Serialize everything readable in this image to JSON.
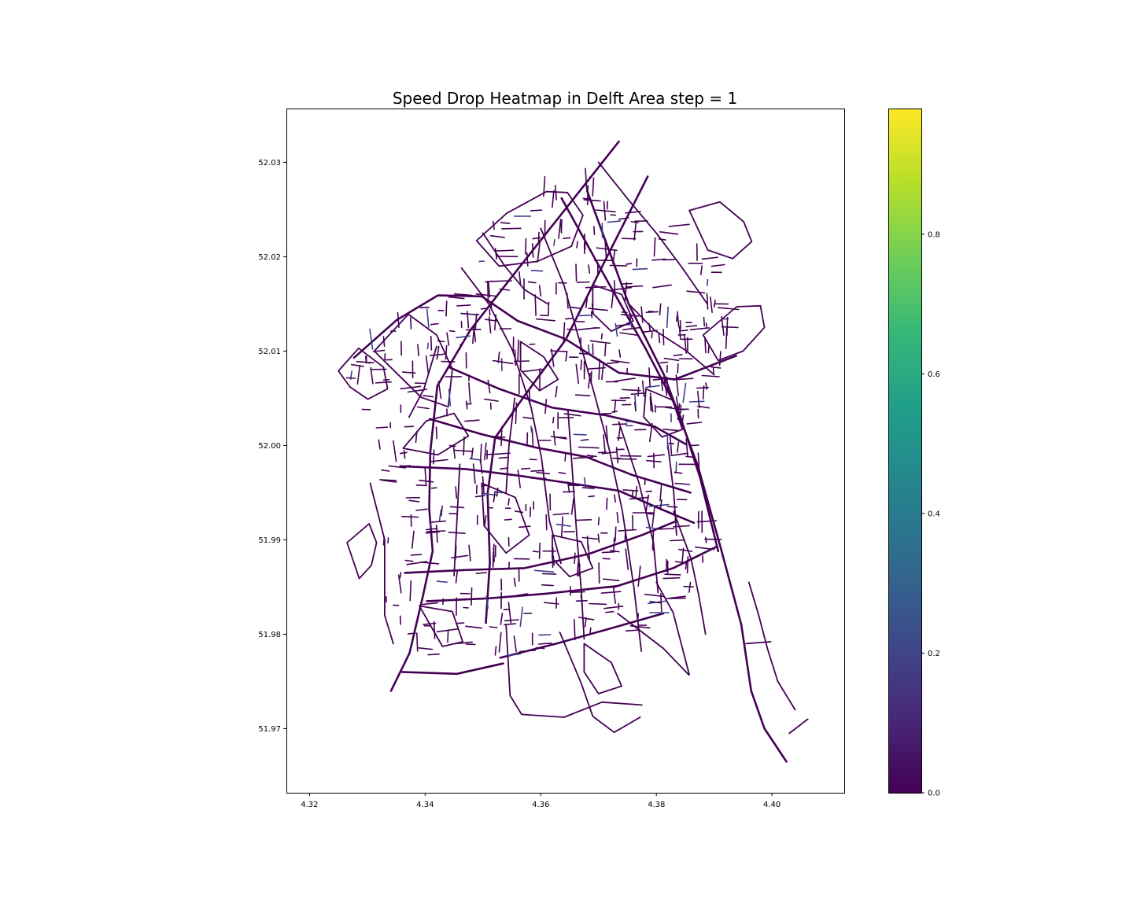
{
  "chart_data": {
    "type": "heatmap",
    "title": "Speed Drop Heatmap in Delft Area step = 1",
    "xlabel": "",
    "ylabel": "",
    "xlim": [
      4.316,
      4.4125
    ],
    "ylim": [
      51.9632,
      52.0357
    ],
    "x_ticks": [
      4.32,
      4.34,
      4.36,
      4.38,
      4.4
    ],
    "x_tick_labels": [
      "4.32",
      "4.34",
      "4.36",
      "4.38",
      "4.40"
    ],
    "y_ticks": [
      51.97,
      51.98,
      51.99,
      52.0,
      52.01,
      52.02,
      52.03
    ],
    "y_tick_labels": [
      "51.97",
      "51.98",
      "51.99",
      "52.00",
      "52.01",
      "52.02",
      "52.03"
    ],
    "grid": false,
    "colorbar": {
      "colormap": "viridis",
      "range": [
        0,
        0.98
      ],
      "ticks": [
        0,
        0.2,
        0.4,
        0.6,
        0.8
      ],
      "tick_labels": [
        "0.0",
        "0.2",
        "0.4",
        "0.6",
        "0.8"
      ],
      "colors": [
        "#440154",
        "#482878",
        "#3e4989",
        "#31688e",
        "#26828e",
        "#1f9e89",
        "#35b779",
        "#6ece58",
        "#b5de2b",
        "#fde725"
      ]
    },
    "edge_color": "#440154",
    "accent_edge_color": "#3b3f8c",
    "roads": [
      [
        [
          4.3735,
          52.0322
        ],
        [
          4.3553,
          52.0181
        ],
        [
          4.3478,
          52.0122
        ],
        [
          4.3421,
          52.0063
        ],
        [
          4.3409,
          51.9993
        ],
        [
          4.3407,
          51.9933
        ],
        [
          4.3413,
          51.9888
        ],
        [
          4.3396,
          51.984
        ],
        [
          4.3373,
          51.978
        ],
        [
          4.3341,
          51.974
        ]
      ],
      [
        [
          4.3785,
          52.0285
        ],
        [
          4.3713,
          52.0198
        ],
        [
          4.3643,
          52.0112
        ],
        [
          4.357,
          52.0051
        ],
        [
          4.3521,
          52.0008
        ],
        [
          4.3508,
          51.9949
        ],
        [
          4.3512,
          51.9876
        ],
        [
          4.3505,
          51.9812
        ]
      ],
      [
        [
          4.368,
          52.027
        ],
        [
          4.3752,
          52.015
        ],
        [
          4.3813,
          52.0075
        ],
        [
          4.3872,
          51.9978
        ],
        [
          4.3912,
          51.989
        ],
        [
          4.3947,
          51.981
        ],
        [
          4.3964,
          51.974
        ],
        [
          4.3987,
          51.97
        ],
        [
          4.4025,
          51.9665
        ]
      ],
      [
        [
          4.3636,
          52.0262
        ],
        [
          4.371,
          52.018
        ],
        [
          4.3781,
          52.0103
        ],
        [
          4.3839,
          52.0035
        ],
        [
          4.3876,
          51.9965
        ],
        [
          4.3907,
          51.9888
        ]
      ],
      [
        [
          4.3277,
          52.0093
        ],
        [
          4.3351,
          52.0133
        ],
        [
          4.3422,
          52.0159
        ],
        [
          4.3498,
          52.0158
        ],
        [
          4.356,
          52.0132
        ],
        [
          4.3642,
          52.0113
        ],
        [
          4.3735,
          52.0077
        ],
        [
          4.3832,
          52.007
        ],
        [
          4.3938,
          52.0095
        ]
      ],
      [
        [
          4.3357,
          51.9978
        ],
        [
          4.347,
          51.9975
        ],
        [
          4.3562,
          51.9968
        ],
        [
          4.365,
          51.996
        ],
        [
          4.3735,
          51.9952
        ],
        [
          4.381,
          51.9932
        ],
        [
          4.3865,
          51.9918
        ]
      ],
      [
        [
          4.3365,
          51.9865
        ],
        [
          4.3468,
          51.9868
        ],
        [
          4.3572,
          51.987
        ],
        [
          4.3683,
          51.9885
        ],
        [
          4.3775,
          51.9905
        ],
        [
          4.3835,
          51.992
        ]
      ],
      [
        [
          4.3403,
          51.9835
        ],
        [
          4.351,
          51.9838
        ],
        [
          4.361,
          51.9843
        ],
        [
          4.3732,
          51.9851
        ],
        [
          4.3829,
          51.987
        ],
        [
          4.3905,
          51.9893
        ]
      ],
      [
        [
          4.353,
          51.9775
        ],
        [
          4.3627,
          51.979
        ],
        [
          4.372,
          51.9806
        ],
        [
          4.3812,
          51.9822
        ]
      ],
      [
        [
          4.336,
          51.976
        ],
        [
          4.3455,
          51.9758
        ],
        [
          4.3535,
          51.9769
        ]
      ],
      [
        [
          4.3441,
          52.0083
        ],
        [
          4.3528,
          52.006
        ],
        [
          4.362,
          52.004
        ],
        [
          4.3712,
          52.0032
        ],
        [
          4.3797,
          52.002
        ],
        [
          4.3852,
          52.0001
        ]
      ],
      [
        [
          4.3408,
          52.0028
        ],
        [
          4.3497,
          52.0012
        ],
        [
          4.359,
          51.9998
        ],
        [
          4.3678,
          51.9988
        ],
        [
          4.3757,
          51.9969
        ],
        [
          4.3859,
          51.995
        ]
      ],
      [
        [
          4.3463,
          52.0188
        ],
        [
          4.351,
          52.015
        ],
        [
          4.3551,
          52.0101
        ],
        [
          4.3583,
          52.0041
        ],
        [
          4.3601,
          51.9988
        ],
        [
          4.3615,
          51.992
        ],
        [
          4.3635,
          51.9875
        ]
      ],
      [
        [
          4.36,
          52.023
        ],
        [
          4.364,
          52.017
        ],
        [
          4.3668,
          52.0109
        ],
        [
          4.3693,
          52.0054
        ],
        [
          4.3718,
          51.9997
        ],
        [
          4.3741,
          51.9931
        ],
        [
          4.3761,
          51.985
        ],
        [
          4.3774,
          51.9782
        ]
      ],
      [
        [
          4.3647,
          52.0038
        ],
        [
          4.3655,
          51.997
        ],
        [
          4.3662,
          51.9908
        ],
        [
          4.367,
          51.9847
        ],
        [
          4.3675,
          51.9795
        ]
      ],
      [
        [
          4.3735,
          52.0025
        ],
        [
          4.377,
          51.996
        ],
        [
          4.3795,
          51.9897
        ],
        [
          4.3803,
          51.9844
        ]
      ],
      [
        [
          4.354,
          51.981
        ],
        [
          4.3547,
          51.9735
        ],
        [
          4.3567,
          51.9715
        ],
        [
          4.364,
          51.9712
        ],
        [
          4.3706,
          51.9728
        ],
        [
          4.3775,
          51.9725
        ]
      ],
      [
        [
          4.3633,
          51.9802
        ],
        [
          4.367,
          51.9748
        ],
        [
          4.369,
          51.9713
        ],
        [
          4.3727,
          51.9696
        ],
        [
          4.3772,
          51.9712
        ]
      ],
      [
        [
          4.3733,
          51.9822
        ],
        [
          4.3812,
          51.9785
        ],
        [
          4.3856,
          51.9757
        ]
      ],
      [
        [
          4.3857,
          51.9757
        ],
        [
          4.3829,
          51.9823
        ],
        [
          4.38,
          51.9855
        ]
      ],
      [
        [
          4.3265,
          51.9897
        ],
        [
          4.3303,
          51.9917
        ],
        [
          4.3316,
          51.9897
        ],
        [
          4.3307,
          51.9873
        ],
        [
          4.3286,
          51.9859
        ],
        [
          4.3265,
          51.9897
        ]
      ],
      [
        [
          4.325,
          52.0079
        ],
        [
          4.327,
          52.0062
        ],
        [
          4.3301,
          52.0049
        ],
        [
          4.3335,
          52.006
        ],
        [
          4.3328,
          52.0083
        ],
        [
          4.3285,
          52.0103
        ],
        [
          4.325,
          52.0079
        ]
      ],
      [
        [
          4.3312,
          52.01
        ],
        [
          4.3371,
          52.0139
        ],
        [
          4.342,
          52.0117
        ],
        [
          4.3447,
          52.0081
        ],
        [
          4.344,
          52.0041
        ],
        [
          4.3393,
          52.0051
        ],
        [
          4.3312,
          52.01
        ]
      ],
      [
        [
          4.3489,
          52.0217
        ],
        [
          4.3541,
          52.0246
        ],
        [
          4.361,
          52.0269
        ],
        [
          4.3646,
          52.0268
        ],
        [
          4.3673,
          52.0244
        ],
        [
          4.3653,
          52.0211
        ],
        [
          4.3594,
          52.0195
        ],
        [
          4.3528,
          52.019
        ],
        [
          4.3489,
          52.0217
        ]
      ],
      [
        [
          4.3857,
          52.0249
        ],
        [
          4.391,
          52.0258
        ],
        [
          4.3951,
          52.0237
        ],
        [
          4.3965,
          52.0216
        ],
        [
          4.3932,
          52.0198
        ],
        [
          4.3889,
          52.0207
        ],
        [
          4.3857,
          52.0249
        ]
      ],
      [
        [
          4.3881,
          52.0117
        ],
        [
          4.3939,
          52.0147
        ],
        [
          4.398,
          52.0148
        ],
        [
          4.3987,
          52.0125
        ],
        [
          4.395,
          52.01
        ],
        [
          4.3907,
          52.009
        ],
        [
          4.3881,
          52.0117
        ]
      ],
      [
        [
          4.3362,
          51.9997
        ],
        [
          4.3402,
          52.0026
        ],
        [
          4.345,
          52.0034
        ],
        [
          4.3475,
          52.001
        ],
        [
          4.3422,
          51.999
        ],
        [
          4.3362,
          51.9997
        ]
      ],
      [
        [
          4.339,
          51.983
        ],
        [
          4.3447,
          51.9824
        ],
        [
          4.3465,
          51.9792
        ],
        [
          4.343,
          51.9787
        ],
        [
          4.339,
          51.983
        ]
      ],
      [
        [
          4.3498,
          51.996
        ],
        [
          4.3556,
          51.9945
        ],
        [
          4.358,
          51.9905
        ],
        [
          4.354,
          51.9886
        ],
        [
          4.3502,
          51.9915
        ],
        [
          4.3498,
          51.996
        ]
      ],
      [
        [
          4.3565,
          52.011
        ],
        [
          4.3605,
          52.0094
        ],
        [
          4.363,
          52.007
        ],
        [
          4.3598,
          52.0058
        ],
        [
          4.3565,
          52.008
        ],
        [
          4.3565,
          52.011
        ]
      ],
      [
        [
          4.369,
          52.017
        ],
        [
          4.374,
          52.016
        ],
        [
          4.376,
          52.0132
        ],
        [
          4.3722,
          52.0121
        ],
        [
          4.369,
          52.014
        ],
        [
          4.369,
          52.017
        ]
      ],
      [
        [
          4.3782,
          52.006
        ],
        [
          4.3828,
          52.0048
        ],
        [
          4.3845,
          52.0017
        ],
        [
          4.381,
          52.0009
        ],
        [
          4.3778,
          52.003
        ],
        [
          4.3782,
          52.006
        ]
      ],
      [
        [
          4.362,
          51.9905
        ],
        [
          4.367,
          51.9898
        ],
        [
          4.369,
          51.987
        ],
        [
          4.365,
          51.9861
        ],
        [
          4.362,
          51.988
        ],
        [
          4.362,
          51.9905
        ]
      ],
      [
        [
          4.3675,
          51.979
        ],
        [
          4.3722,
          51.977
        ],
        [
          4.374,
          51.9745
        ],
        [
          4.37,
          51.9737
        ],
        [
          4.3675,
          51.976
        ],
        [
          4.3675,
          51.979
        ]
      ],
      [
        [
          4.396,
          51.9855
        ],
        [
          4.3977,
          51.982
        ],
        [
          4.3992,
          51.9785
        ],
        [
          4.401,
          51.975
        ],
        [
          4.404,
          51.972
        ]
      ],
      [
        [
          4.3955,
          51.979
        ],
        [
          4.3998,
          51.9792
        ]
      ],
      [
        [
          4.403,
          51.9695
        ],
        [
          4.4062,
          51.971
        ]
      ],
      [
        [
          4.383,
          51.993
        ],
        [
          4.386,
          51.988
        ],
        [
          4.3873,
          51.9842
        ],
        [
          4.3885,
          51.98
        ]
      ],
      [
        [
          4.342,
          52.0105
        ],
        [
          4.3398,
          52.006
        ],
        [
          4.3372,
          52.003
        ]
      ],
      [
        [
          4.35,
          52.0225
        ],
        [
          4.3538,
          52.019
        ],
        [
          4.3572,
          52.0165
        ],
        [
          4.3612,
          52.015
        ]
      ],
      [
        [
          4.37,
          52.03
        ],
        [
          4.3752,
          52.026
        ],
        [
          4.38,
          52.0225
        ],
        [
          4.3845,
          52.0188
        ],
        [
          4.3888,
          52.015
        ]
      ],
      [
        [
          4.3305,
          51.996
        ],
        [
          4.333,
          51.99
        ],
        [
          4.333,
          51.982
        ],
        [
          4.3345,
          51.979
        ]
      ],
      [
        [
          4.346,
          51.998
        ],
        [
          4.3455,
          51.992
        ],
        [
          4.345,
          51.9862
        ]
      ],
      [
        [
          4.3555,
          52.005
        ],
        [
          4.3545,
          52.0
        ],
        [
          4.354,
          51.995
        ]
      ],
      [
        [
          4.382,
          52.0
        ],
        [
          4.383,
          51.995
        ],
        [
          4.3835,
          51.9905
        ]
      ],
      [
        [
          4.3752,
          52.015
        ],
        [
          4.3797,
          52.0122
        ],
        [
          4.385,
          52.0101
        ],
        [
          4.39,
          52.0075
        ]
      ]
    ]
  }
}
